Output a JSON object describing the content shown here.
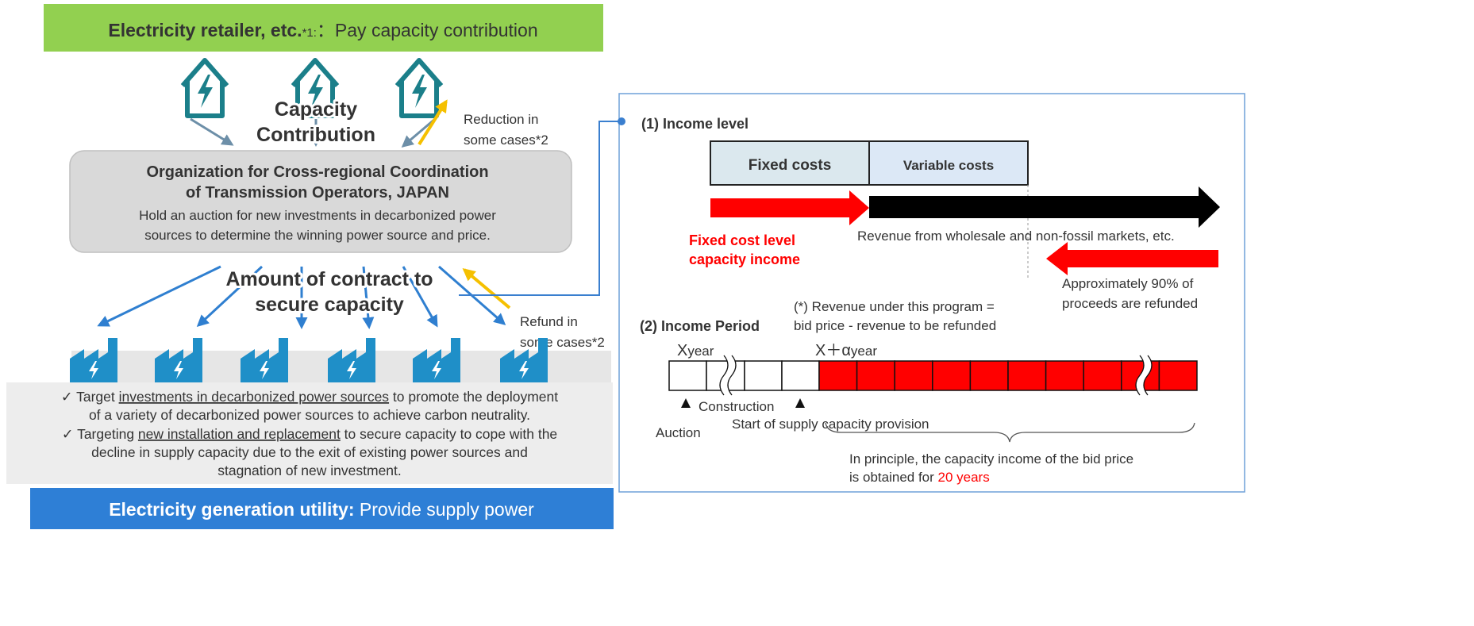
{
  "retailer_banner": {
    "title": "Electricity retailer, etc.",
    "note": "*1:",
    "text": "：Pay capacity contribution"
  },
  "capacity_contribution": [
    "Capacity",
    "Contribution"
  ],
  "reduction_note": [
    "Reduction in",
    "some cases*2"
  ],
  "occto": {
    "title": [
      "Organization for Cross-regional Coordination",
      "of Transmission Operators, JAPAN"
    ],
    "description": [
      "Hold an auction for new investments in decarbonized power",
      "sources to determine the winning power source and price."
    ]
  },
  "contract_amount": [
    "Amount of contract to",
    "secure capacity"
  ],
  "refund_note": [
    "Refund in",
    "some cases*2"
  ],
  "bullets": [
    {
      "mark": "✓",
      "lines": [
        [
          "Target ",
          "investments in decarbonized power sources",
          " to promote the deployment"
        ],
        [
          "of a variety of decarbonized power sources to achieve carbon neutrality."
        ]
      ]
    },
    {
      "mark": "✓",
      "lines": [
        [
          "Targeting ",
          "new installation and replacement",
          " to secure capacity to cope with the"
        ],
        [
          "decline in supply capacity due to the exit of existing power sources and"
        ],
        [
          "stagnation of new investment."
        ]
      ]
    }
  ],
  "generator_banner": {
    "title": "Electricity generation utility:",
    "text": " Provide supply power"
  },
  "income_level": {
    "heading": "(1) Income level",
    "fixed_costs": "Fixed costs",
    "variable_costs": "Variable costs",
    "fixed_income": [
      "Fixed cost level",
      "capacity income"
    ],
    "market_revenue": "Revenue from wholesale and non-fossil markets, etc.",
    "refund": [
      "Approximately 90% of",
      "proceeds are refunded"
    ]
  },
  "income_period": {
    "heading": "(2) Income Period",
    "note": [
      "(*) Revenue under this program =",
      "bid price - revenue to be refunded"
    ],
    "start_year": {
      "symbol": "X",
      "unit": "year"
    },
    "supply_year": {
      "symbol": "X＋α",
      "unit": "year"
    },
    "construction": "Construction",
    "auction": "Auction",
    "supply_start": "Start of supply capacity provision",
    "principle": [
      "In principle, the capacity income of the bid price",
      "is obtained for ",
      "20 years"
    ]
  }
}
